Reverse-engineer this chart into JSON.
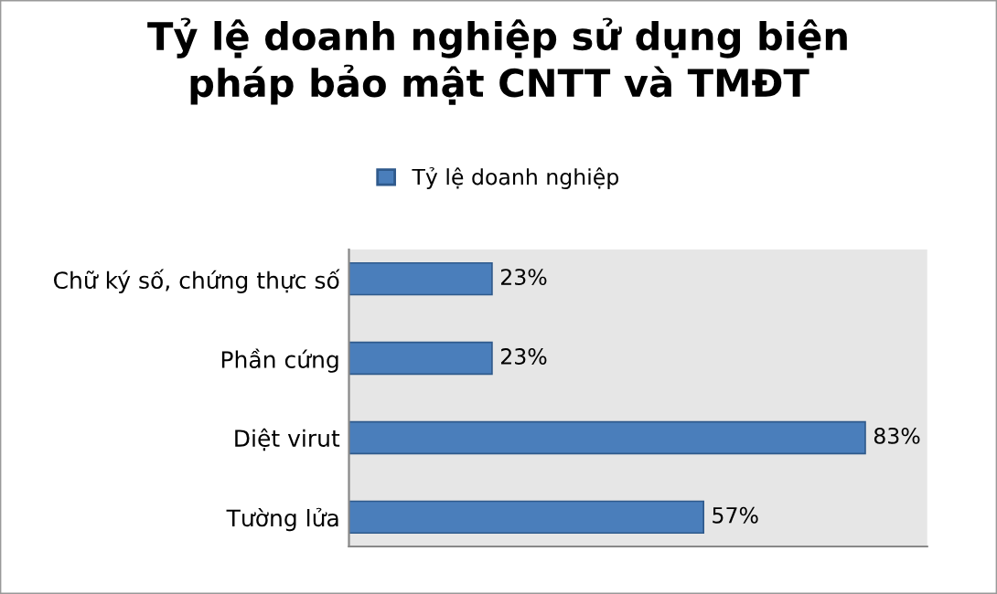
{
  "chart_data": {
    "type": "bar",
    "orientation": "horizontal",
    "title": "Tỷ lệ doanh nghiệp sử dụng biện\npháp bảo mật CNTT và TMĐT",
    "categories": [
      "Chữ ký số, chứng thực số",
      "Phần cứng",
      "Diệt virut",
      "Tường lửa"
    ],
    "series": [
      {
        "name": "Tỷ lệ doanh nghiệp",
        "color": "#4a7ebb",
        "values": [
          23,
          23,
          83,
          57
        ],
        "value_labels": [
          "23%",
          "23%",
          "83%",
          "57%"
        ]
      }
    ],
    "legend": "top",
    "grid": false
  }
}
